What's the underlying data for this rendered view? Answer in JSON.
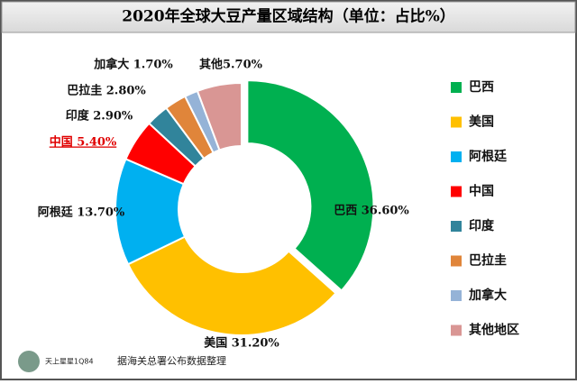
{
  "chart_data": {
    "type": "donut",
    "title": "2020年全球大豆产量区域结构（单位：占比%）",
    "categories": [
      "巴西",
      "美国",
      "阿根廷",
      "中国",
      "印度",
      "巴拉圭",
      "加拿大",
      "其他地区"
    ],
    "values": [
      36.6,
      31.2,
      13.7,
      5.4,
      2.9,
      2.8,
      1.7,
      5.7
    ],
    "value_labels": [
      "巴西 36.60%",
      "美国 31.20%",
      "阿根廷 13.70%",
      "中国 5.40%",
      "印度 2.90%",
      "巴拉圭 2.80%",
      "加拿大 1.70%",
      "其他5.70%"
    ],
    "colors": [
      "#00b050",
      "#ffc000",
      "#00b0f0",
      "#ff0000",
      "#31849b",
      "#e0853a",
      "#95b3d7",
      "#d99694"
    ],
    "legend": "right",
    "source": "据海关总署公布数据整理",
    "watermark": "天上星星1Q84"
  }
}
